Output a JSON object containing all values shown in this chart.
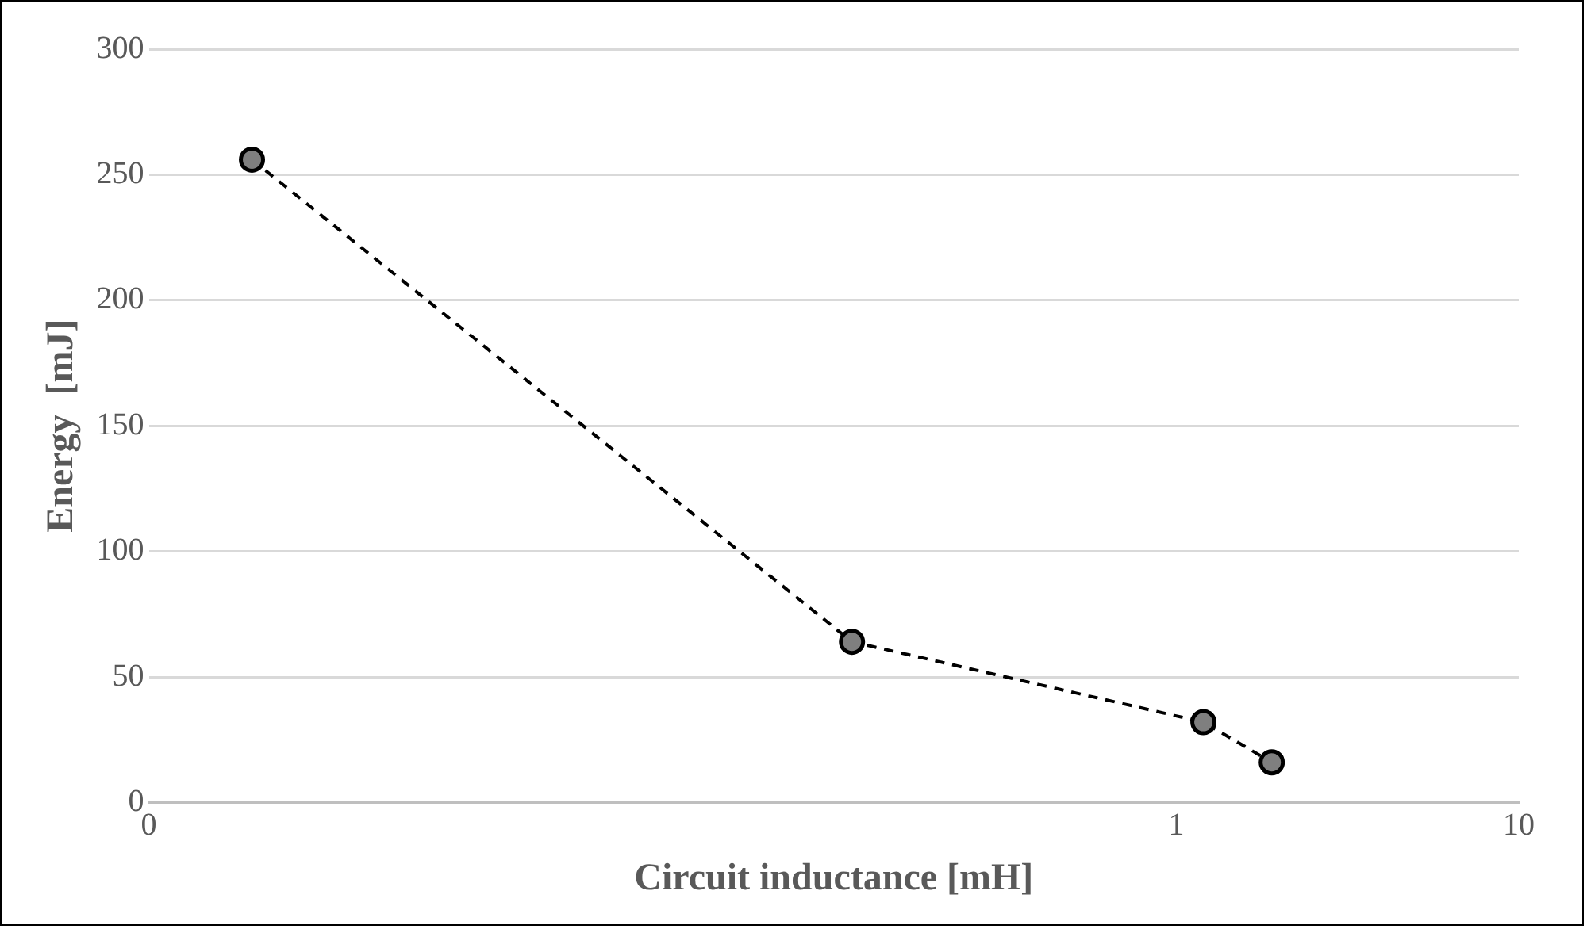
{
  "chart_data": {
    "type": "line",
    "xlabel": "Circuit inductance [mH]",
    "ylabel": "Energy  [mJ]",
    "log": "x",
    "xlim": [
      0.001,
      10
    ],
    "xticks": [
      {
        "value": 0.001,
        "label": "0"
      },
      1,
      10
    ],
    "ylim": [
      0,
      300
    ],
    "yticks": [
      0,
      50,
      100,
      150,
      200,
      250,
      300
    ],
    "grid": "y",
    "legend": false,
    "marker": "circle",
    "line_style": "dashed",
    "series": [
      {
        "color": "#000000",
        "x": [
          0.002,
          0.113,
          1.2,
          1.9
        ],
        "values": [
          256,
          64,
          32,
          16
        ]
      }
    ]
  }
}
